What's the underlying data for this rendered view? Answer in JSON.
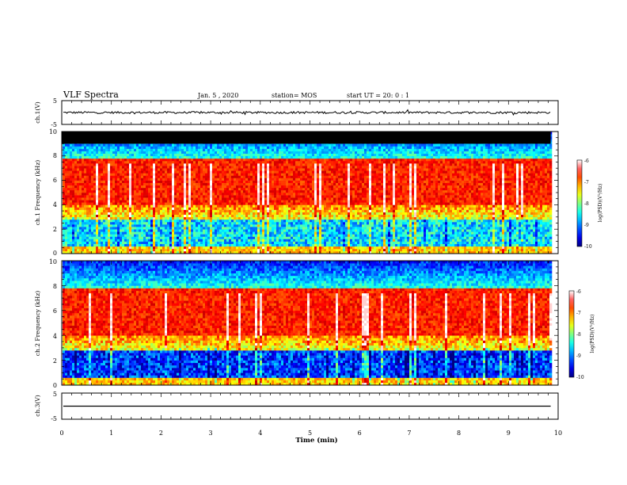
{
  "header": {
    "title": "VLF Spectra",
    "date": "Jan. 5 , 2020",
    "station": "station= MOS",
    "start": "start UT = 20: 0 : 1"
  },
  "colors": {
    "background": "#ffffff",
    "axis": "#000000",
    "trace": "#000000",
    "saturated_band": "#000000"
  },
  "chart_data": [
    {
      "id": "ch1_waveform",
      "type": "line",
      "ylabel": "ch.1(V)",
      "ylim": [
        -5,
        5
      ],
      "yticks": [
        "5",
        "-5"
      ],
      "xlim": [
        0,
        10
      ],
      "trace_level": 0,
      "trace_end_min": 9.85
    },
    {
      "id": "ch1_spectrogram",
      "type": "heatmap",
      "ylabel": "ch.1 Frequency (kHz)",
      "ylim": [
        0,
        10
      ],
      "yticks": [
        "0",
        "2",
        "4",
        "6",
        "8",
        "10"
      ],
      "xlim": [
        0,
        10
      ],
      "data_end_min": 9.85,
      "black_band_khz": [
        9.0,
        10.0
      ],
      "colorbar": {
        "label": "log(PSD)(V²/Hz)",
        "range": [
          -10,
          -6
        ],
        "ticks": [
          "-6",
          "-7",
          "-8",
          "-9",
          "-10"
        ]
      }
    },
    {
      "id": "ch2_spectrogram",
      "type": "heatmap",
      "ylabel": "ch.2 Frequency (kHz)",
      "ylim": [
        0,
        10
      ],
      "yticks": [
        "0",
        "2",
        "4",
        "6",
        "8",
        "10"
      ],
      "xlim": [
        0,
        10
      ],
      "data_end_min": 9.85,
      "colorbar": {
        "label": "log(PSD)(V²/Hz)",
        "range": [
          -10,
          -6
        ],
        "ticks": [
          "-6",
          "-7",
          "-8",
          "-9",
          "-10"
        ]
      }
    },
    {
      "id": "ch3_waveform",
      "type": "line",
      "ylabel": "ch.3(V)",
      "ylim": [
        -5,
        5
      ],
      "yticks": [
        "5",
        "-5"
      ],
      "xlim": [
        0,
        10
      ],
      "trace_level": 0,
      "trace_end_min": 9.85
    }
  ],
  "xaxis": {
    "label": "Time (min)",
    "ticks": [
      "0",
      "1",
      "2",
      "3",
      "4",
      "5",
      "6",
      "7",
      "8",
      "9",
      "10"
    ]
  }
}
